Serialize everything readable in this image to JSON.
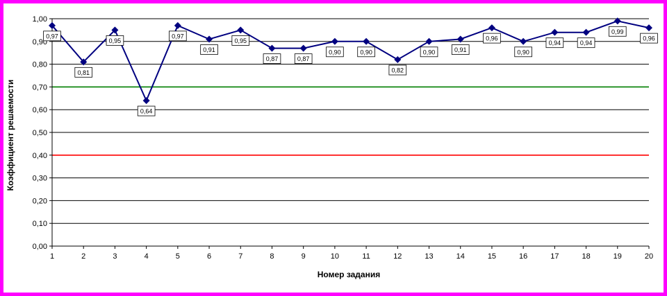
{
  "chart_data": {
    "type": "line",
    "title": "",
    "xlabel": "Номер задания",
    "ylabel": "Коэффициент решаемости",
    "x": [
      1,
      2,
      3,
      4,
      5,
      6,
      7,
      8,
      9,
      10,
      11,
      12,
      13,
      14,
      15,
      16,
      17,
      18,
      19,
      20
    ],
    "x_tick_labels": [
      "1",
      "2",
      "3",
      "4",
      "5",
      "6",
      "7",
      "8",
      "9",
      "10",
      "11",
      "12",
      "13",
      "14",
      "15",
      "16",
      "17",
      "18",
      "19",
      "20"
    ],
    "y_tick_labels": [
      "0,00",
      "0,10",
      "0,20",
      "0,30",
      "0,40",
      "0,50",
      "0,60",
      "0,70",
      "0,80",
      "0,90",
      "1,00"
    ],
    "ylim": [
      0,
      1
    ],
    "grid": true,
    "series": [
      {
        "values": [
          0.97,
          0.81,
          0.95,
          0.64,
          0.97,
          0.91,
          0.95,
          0.87,
          0.87,
          0.9,
          0.9,
          0.82,
          0.9,
          0.91,
          0.96,
          0.9,
          0.94,
          0.94,
          0.99,
          0.96
        ],
        "data_labels": [
          "0,97",
          "0,81",
          "0,95",
          "0,64",
          "0,97",
          "0,91",
          "0,95",
          "0,87",
          "0,87",
          "0,90",
          "0,90",
          "0,82",
          "0,90",
          "0,91",
          "0,96",
          "0,90",
          "0,94",
          "0,94",
          "0,99",
          "0,96"
        ],
        "color": "#000080"
      }
    ],
    "reference_lines": [
      {
        "y": 0.7,
        "color": "#008000"
      },
      {
        "y": 0.4,
        "color": "#ff0000"
      }
    ],
    "background_color": "#ffffff",
    "border_color": "#ff00ff"
  }
}
